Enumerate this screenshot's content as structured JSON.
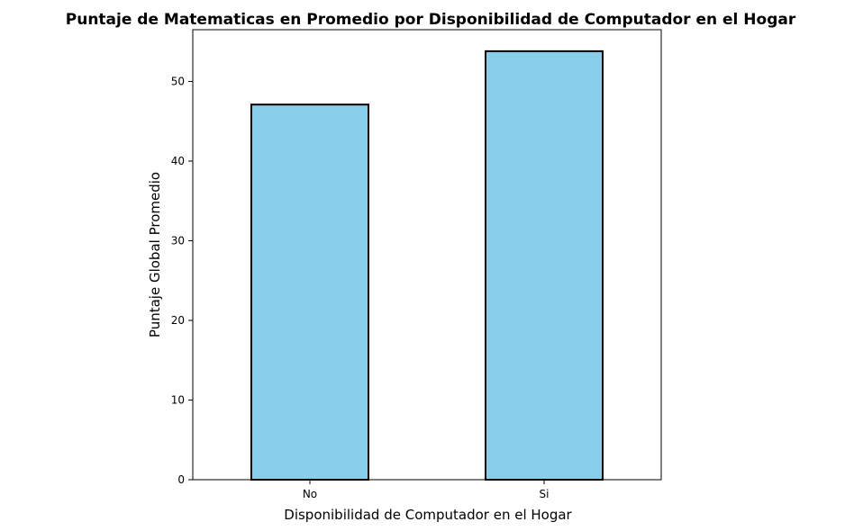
{
  "chart_data": {
    "type": "bar",
    "title": "Puntaje de Matematicas en Promedio por Disponibilidad de Computador en el Hogar",
    "xlabel": "Disponibilidad de Computador en el Hogar",
    "ylabel": "Puntaje Global Promedio",
    "categories": [
      "No",
      "Si"
    ],
    "values": [
      47.1,
      53.8
    ],
    "ylim": [
      0,
      56.5
    ],
    "yticks": [
      0,
      10,
      20,
      30,
      40,
      50
    ],
    "bar_color": "#87ceeb",
    "edge_color": "#000000",
    "grid": false,
    "legend": "none"
  }
}
